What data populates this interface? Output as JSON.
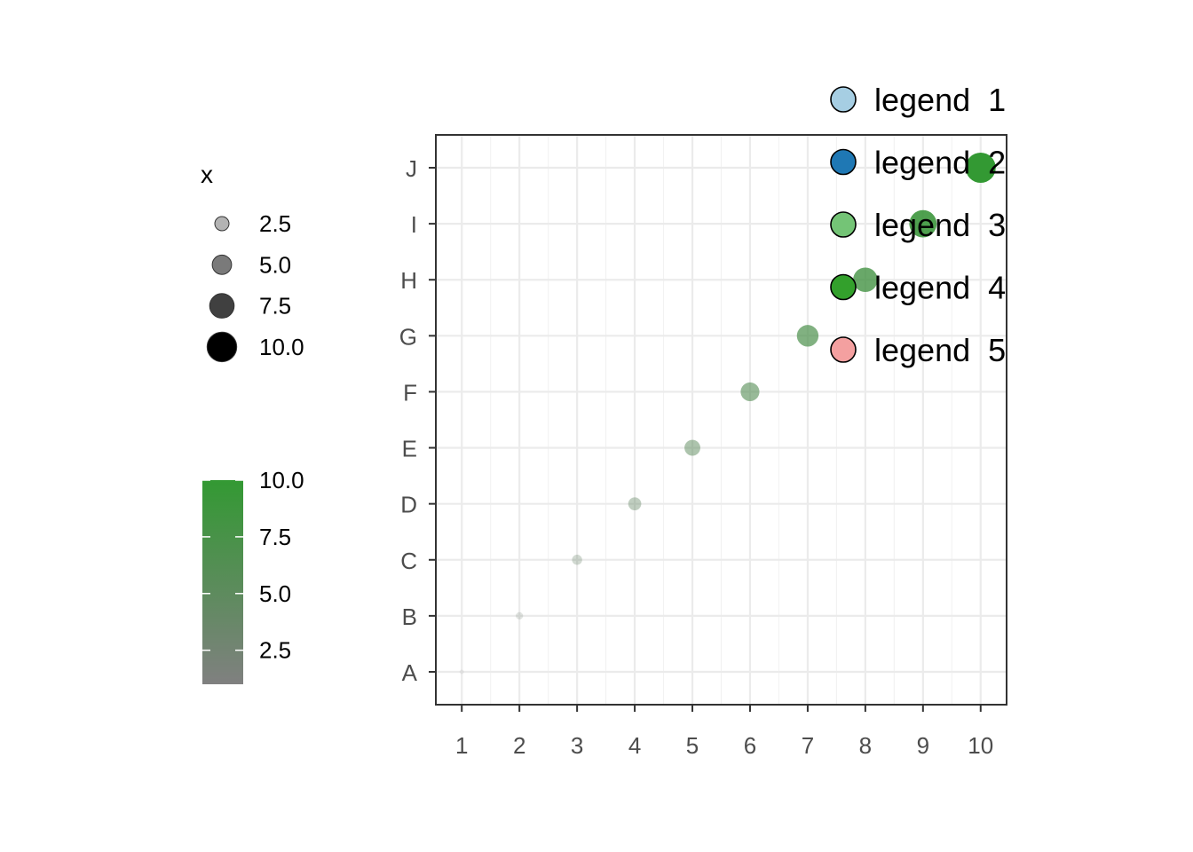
{
  "chart_data": {
    "type": "scatter",
    "title": "",
    "xlabel": "",
    "ylabel": "",
    "x": [
      1,
      2,
      3,
      4,
      5,
      6,
      7,
      8,
      9,
      10
    ],
    "y": [
      "A",
      "B",
      "C",
      "D",
      "E",
      "F",
      "G",
      "H",
      "I",
      "J"
    ],
    "size": [
      1,
      2,
      3,
      4,
      5,
      6,
      7,
      8,
      9,
      10
    ],
    "color": [
      1,
      2,
      3,
      4,
      5,
      6,
      7,
      8,
      9,
      10
    ],
    "x_ticks": [
      "1",
      "2",
      "3",
      "4",
      "5",
      "6",
      "7",
      "8",
      "9",
      "10"
    ],
    "y_categories": [
      "A",
      "B",
      "C",
      "D",
      "E",
      "F",
      "G",
      "H",
      "I",
      "J"
    ],
    "xlim": [
      0.55,
      10.45
    ],
    "grid": true,
    "size_legend": {
      "title": "x",
      "labels": [
        "2.5",
        "5.0",
        "7.5",
        "10.0"
      ],
      "values": [
        2.5,
        5.0,
        7.5,
        10.0
      ]
    },
    "color_legend": {
      "labels": [
        "10.0",
        "7.5",
        "5.0",
        "2.5"
      ],
      "values": [
        10.0,
        7.5,
        5.0,
        2.5
      ],
      "low_color": "#808080",
      "high_color": "#339933",
      "range": [
        1,
        10
      ]
    },
    "key_legend": {
      "placement": "top-right",
      "items": [
        {
          "label": "legend  1",
          "color": "#a6cee3"
        },
        {
          "label": "legend  2",
          "color": "#1f78b4"
        },
        {
          "label": "legend  3",
          "color": "#74c476"
        },
        {
          "label": "legend  4",
          "color": "#33a02c"
        },
        {
          "label": "legend  5",
          "color": "#f4a0a0"
        }
      ]
    }
  }
}
